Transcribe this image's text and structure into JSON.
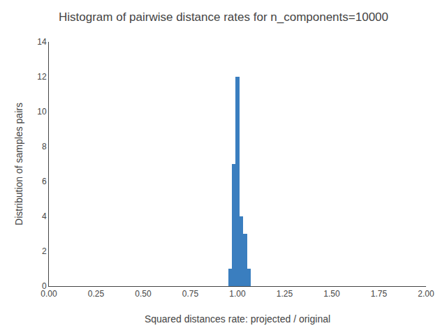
{
  "chart_data": {
    "type": "histogram",
    "title": "Histogram of pairwise distance rates for n_components=10000",
    "xlabel": "Squared distances rate: projected / original",
    "ylabel": "Distribution of samples pairs",
    "bins": [
      0.93,
      0.95,
      0.97,
      0.99,
      1.01,
      1.03,
      1.05,
      1.07,
      1.09
    ],
    "values": [
      0,
      1,
      7,
      12,
      4,
      3,
      1,
      0
    ],
    "color": "#3a7ebf",
    "xlim": [
      0.0,
      2.0
    ],
    "xticks": [
      {
        "value": 0.0,
        "label": "0.00"
      },
      {
        "value": 0.25,
        "label": "0.25"
      },
      {
        "value": 0.5,
        "label": "0.50"
      },
      {
        "value": 0.75,
        "label": "0.75"
      },
      {
        "value": 1.0,
        "label": "1.00"
      },
      {
        "value": 1.25,
        "label": "1.25"
      },
      {
        "value": 1.5,
        "label": "1.50"
      },
      {
        "value": 1.75,
        "label": "1.75"
      },
      {
        "value": 2.0,
        "label": "2.00"
      }
    ],
    "ylim": [
      0,
      14
    ],
    "yticks": [
      0,
      2,
      4,
      6,
      8,
      10,
      12,
      14
    ],
    "grid": false
  }
}
